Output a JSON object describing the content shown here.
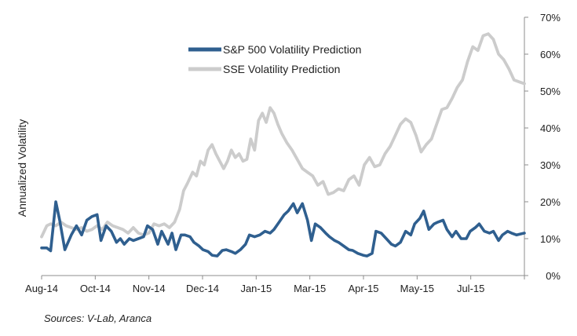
{
  "chart_data": {
    "type": "line",
    "title": "",
    "xlabel": "",
    "ylabel": "Annualized Volatility",
    "y_axis_side": "right",
    "ylim": [
      0,
      70
    ],
    "y_ticks": [
      0,
      10,
      20,
      30,
      40,
      50,
      60,
      70
    ],
    "y_tick_labels": [
      "0%",
      "10%",
      "20%",
      "30%",
      "40%",
      "50%",
      "60%",
      "70%"
    ],
    "x_tick_labels": [
      "Aug-14",
      "Oct-14",
      "Nov-14",
      "Dec-14",
      "Jan-15",
      "Mar-15",
      "Apr-15",
      "May-15",
      "Jul-15"
    ],
    "x_range": [
      "2014-08-01",
      "2015-08-10"
    ],
    "grid": false,
    "legend_position": "top-center",
    "source": "Sources: V-Lab, Aranca",
    "series": [
      {
        "name": "S&P 500 Volatility Prediction",
        "color": "#2F5F8F",
        "x": [
          "2014-08-01",
          "2014-08-05",
          "2014-08-08",
          "2014-08-12",
          "2014-08-15",
          "2014-08-19",
          "2014-08-24",
          "2014-08-28",
          "2014-09-01",
          "2014-09-05",
          "2014-09-09",
          "2014-09-13",
          "2014-09-16",
          "2014-09-20",
          "2014-09-24",
          "2014-09-28",
          "2014-10-01",
          "2014-10-04",
          "2014-10-08",
          "2014-10-11",
          "2014-10-15",
          "2014-10-19",
          "2014-10-22",
          "2014-10-26",
          "2014-10-30",
          "2014-11-02",
          "2014-11-07",
          "2014-11-10",
          "2014-11-13",
          "2014-11-17",
          "2014-11-20",
          "2014-11-24",
          "2014-11-27",
          "2014-12-01",
          "2014-12-04",
          "2014-12-08",
          "2014-12-11",
          "2014-12-15",
          "2014-12-19",
          "2014-12-22",
          "2014-12-26",
          "2014-12-29",
          "2015-01-02",
          "2015-01-06",
          "2015-01-09",
          "2015-01-13",
          "2015-01-17",
          "2015-01-21",
          "2015-01-25",
          "2015-01-28",
          "2015-02-01",
          "2015-02-05",
          "2015-02-08",
          "2015-02-12",
          "2015-02-15",
          "2015-02-19",
          "2015-02-23",
          "2015-02-26",
          "2015-03-01",
          "2015-03-05",
          "2015-03-09",
          "2015-03-12",
          "2015-03-16",
          "2015-03-19",
          "2015-03-23",
          "2015-03-27",
          "2015-03-30",
          "2015-04-03",
          "2015-04-07",
          "2015-04-10",
          "2015-04-14",
          "2015-04-17",
          "2015-04-21",
          "2015-04-25",
          "2015-04-29",
          "2015-05-02",
          "2015-05-06",
          "2015-05-10",
          "2015-05-14",
          "2015-05-17",
          "2015-05-21",
          "2015-05-24",
          "2015-05-28",
          "2015-06-01",
          "2015-06-04",
          "2015-06-08",
          "2015-06-11",
          "2015-06-15",
          "2015-06-18",
          "2015-06-22",
          "2015-06-26",
          "2015-06-29",
          "2015-07-03",
          "2015-07-06",
          "2015-07-10",
          "2015-07-14",
          "2015-07-17",
          "2015-07-21",
          "2015-07-24",
          "2015-07-28",
          "2015-07-31",
          "2015-08-04",
          "2015-08-10"
        ],
        "values": [
          7.5,
          7.5,
          6.7,
          20.0,
          15.0,
          7.0,
          11.0,
          13.5,
          11.0,
          15.0,
          16.0,
          16.5,
          9.5,
          13.5,
          12.0,
          9.0,
          10.0,
          8.5,
          10.0,
          9.5,
          10.0,
          10.5,
          13.5,
          12.5,
          8.5,
          12.0,
          8.5,
          11.5,
          7.0,
          11.0,
          11.0,
          10.5,
          9.0,
          8.0,
          7.0,
          6.5,
          5.5,
          5.3,
          6.8,
          7.0,
          6.5,
          6.0,
          7.0,
          8.5,
          11.0,
          10.5,
          11.0,
          12.0,
          11.5,
          12.5,
          14.5,
          16.5,
          17.5,
          19.5,
          17.0,
          19.5,
          15.0,
          9.5,
          14.0,
          13.0,
          11.5,
          10.5,
          9.5,
          9.0,
          8.0,
          7.0,
          6.8,
          6.0,
          5.5,
          5.3,
          6.0,
          12.0,
          11.5,
          10.0,
          8.5,
          8.0,
          9.0,
          12.0,
          11.0,
          14.0,
          15.5,
          17.5,
          12.5,
          14.0,
          14.5,
          15.0,
          12.5,
          10.5,
          12.0,
          10.0,
          10.0,
          12.0,
          13.0,
          14.0,
          12.0,
          11.5,
          12.0,
          9.5,
          11.0,
          12.0,
          11.5,
          11.0,
          11.5
        ]
      },
      {
        "name": "SSE Volatility Prediction",
        "color": "#CCCCCC",
        "x": [
          "2014-08-01",
          "2014-08-05",
          "2014-08-08",
          "2014-08-12",
          "2014-08-16",
          "2014-08-20",
          "2014-08-24",
          "2014-08-28",
          "2014-09-01",
          "2014-09-05",
          "2014-09-09",
          "2014-09-13",
          "2014-09-17",
          "2014-09-21",
          "2014-09-25",
          "2014-09-29",
          "2014-10-03",
          "2014-10-07",
          "2014-10-11",
          "2014-10-15",
          "2014-10-19",
          "2014-10-23",
          "2014-10-27",
          "2014-10-31",
          "2014-11-04",
          "2014-11-08",
          "2014-11-12",
          "2014-11-16",
          "2014-11-19",
          "2014-11-22",
          "2014-11-26",
          "2014-11-29",
          "2014-12-02",
          "2014-12-05",
          "2014-12-08",
          "2014-12-11",
          "2014-12-14",
          "2014-12-17",
          "2014-12-20",
          "2014-12-23",
          "2014-12-26",
          "2014-12-29",
          "2015-01-01",
          "2015-01-04",
          "2015-01-07",
          "2015-01-10",
          "2015-01-13",
          "2015-01-16",
          "2015-01-19",
          "2015-01-22",
          "2015-01-25",
          "2015-01-28",
          "2015-01-31",
          "2015-02-03",
          "2015-02-07",
          "2015-02-11",
          "2015-02-15",
          "2015-02-19",
          "2015-02-23",
          "2015-02-27",
          "2015-03-03",
          "2015-03-07",
          "2015-03-11",
          "2015-03-15",
          "2015-03-19",
          "2015-03-23",
          "2015-03-27",
          "2015-03-31",
          "2015-04-04",
          "2015-04-08",
          "2015-04-12",
          "2015-04-16",
          "2015-04-20",
          "2015-04-24",
          "2015-04-28",
          "2015-05-02",
          "2015-05-06",
          "2015-05-10",
          "2015-05-14",
          "2015-05-18",
          "2015-05-22",
          "2015-05-26",
          "2015-05-30",
          "2015-06-03",
          "2015-06-07",
          "2015-06-11",
          "2015-06-15",
          "2015-06-19",
          "2015-06-23",
          "2015-06-27",
          "2015-07-01",
          "2015-07-05",
          "2015-07-09",
          "2015-07-13",
          "2015-07-17",
          "2015-07-21",
          "2015-07-25",
          "2015-07-29",
          "2015-08-02",
          "2015-08-06",
          "2015-08-10"
        ],
        "values": [
          10.5,
          13.5,
          14.0,
          13.5,
          14.5,
          13.5,
          13.0,
          12.5,
          13.0,
          12.0,
          12.5,
          13.5,
          12.5,
          14.5,
          13.5,
          13.0,
          12.5,
          11.5,
          13.0,
          11.5,
          11.0,
          11.5,
          14.0,
          13.5,
          14.0,
          13.0,
          14.5,
          18.0,
          23.0,
          25.0,
          28.0,
          27.0,
          31.0,
          30.0,
          34.0,
          35.5,
          33.0,
          31.0,
          29.0,
          31.0,
          34.0,
          32.0,
          33.0,
          31.0,
          31.5,
          37.0,
          34.0,
          42.0,
          44.0,
          41.5,
          45.5,
          44.0,
          41.0,
          38.5,
          36.0,
          34.0,
          31.5,
          29.0,
          28.0,
          27.0,
          24.5,
          25.5,
          22.0,
          22.5,
          23.5,
          23.0,
          26.0,
          27.0,
          24.5,
          30.0,
          32.0,
          29.5,
          30.0,
          33.0,
          35.0,
          38.0,
          41.0,
          42.5,
          41.5,
          38.0,
          33.5,
          35.5,
          37.0,
          41.0,
          45.0,
          45.5,
          48.0,
          51.0,
          53.0,
          58.0,
          62.0,
          61.0,
          65.0,
          65.5,
          64.0,
          60.0,
          58.5,
          56.0,
          53.0,
          52.5,
          52.0
        ]
      }
    ]
  }
}
